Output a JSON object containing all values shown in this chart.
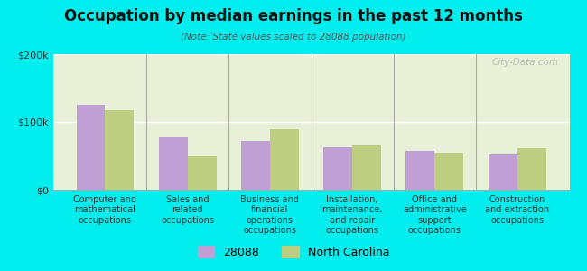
{
  "title": "Occupation by median earnings in the past 12 months",
  "subtitle": "(Note: State values scaled to 28088 population)",
  "categories": [
    "Computer and\nmathematical\noccupations",
    "Sales and\nrelated\noccupations",
    "Business and\nfinancial\noperations\noccupations",
    "Installation,\nmaintenance,\nand repair\noccupations",
    "Office and\nadministrative\nsupport\noccupations",
    "Construction\nand extraction\noccupations"
  ],
  "values_28088": [
    125000,
    78000,
    72000,
    63000,
    58000,
    52000
  ],
  "values_nc": [
    117000,
    50000,
    90000,
    65000,
    55000,
    62000
  ],
  "color_28088": "#bf9fd4",
  "color_nc": "#bece80",
  "ylim": [
    0,
    200000
  ],
  "yticks": [
    0,
    100000,
    200000
  ],
  "ytick_labels": [
    "$0",
    "$100k",
    "$200k"
  ],
  "legend_labels": [
    "28088",
    "North Carolina"
  ],
  "background_color": "#00eeee",
  "plot_bg_color": "#e8f0d8",
  "watermark": "City-Data.com"
}
